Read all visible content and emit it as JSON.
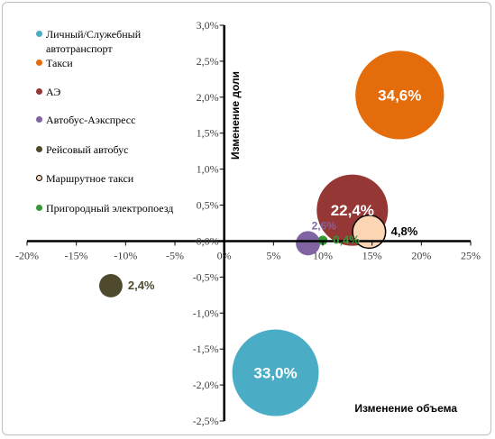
{
  "chart_data": {
    "type": "scatter",
    "subtype": "bubble",
    "xlabel": "Изменение объема",
    "ylabel": "Изменение доли",
    "xlim": [
      -0.2,
      0.25
    ],
    "ylim": [
      -0.025,
      0.03
    ],
    "x_ticks": [
      "-20%",
      "-15%",
      "-10%",
      "-5%",
      "0%",
      "5%",
      "10%",
      "15%",
      "20%",
      "25%"
    ],
    "y_ticks": [
      "3,0%",
      "2,5%",
      "2,0%",
      "1,5%",
      "1,0%",
      "0,5%",
      "0,0%",
      "-0,5%",
      "-1,0%",
      "-1,5%",
      "-2,0%",
      "-2,5%"
    ],
    "legend_position": "left",
    "series": [
      {
        "name": "Личный/Служебный автотранспорт",
        "color": "#4bacc6",
        "x": 0.052,
        "y": -0.0183,
        "size": 0.33,
        "label": "33,0%",
        "label_color": "#ffffff",
        "label_pos": "center"
      },
      {
        "name": "Такси",
        "color": "#e46c0a",
        "x": 0.178,
        "y": 0.0203,
        "size": 0.346,
        "label": "34,6%",
        "label_color": "#ffffff",
        "label_pos": "center"
      },
      {
        "name": "АЭ",
        "color": "#953735",
        "x": 0.13,
        "y": 0.0043,
        "size": 0.224,
        "label": "22,4%",
        "label_color": "#ffffff",
        "label_pos": "center"
      },
      {
        "name": "Автобус-Аэкспресс",
        "color": "#8064a2",
        "x": 0.085,
        "y": -0.0003,
        "size": 0.026,
        "label": "2,6%",
        "label_color": "#8064a2",
        "label_pos": "above"
      },
      {
        "name": "Рейсовый автобус",
        "color": "#4f4a2e",
        "x": -0.115,
        "y": -0.0062,
        "size": 0.024,
        "label": "2,4%",
        "label_color": "#4f4a2e",
        "label_pos": "right"
      },
      {
        "name": "Маршрутное такси",
        "color": "#fcd5b5",
        "stroke": "#000000",
        "x": 0.147,
        "y": 0.0013,
        "size": 0.048,
        "label": "4,8%",
        "label_color": "#000000",
        "label_pos": "right"
      },
      {
        "name": "Пригородный электропоезд",
        "color": "#339933",
        "x": 0.1,
        "y": 0.0001,
        "size": 0.004,
        "label": "0,4%",
        "label_color": "#339933",
        "label_pos": "right"
      }
    ]
  }
}
